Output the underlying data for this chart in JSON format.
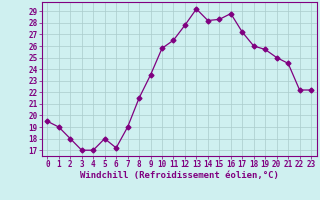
{
  "x": [
    0,
    1,
    2,
    3,
    4,
    5,
    6,
    7,
    8,
    9,
    10,
    11,
    12,
    13,
    14,
    15,
    16,
    17,
    18,
    19,
    20,
    21,
    22,
    23
  ],
  "y": [
    19.5,
    19.0,
    18.0,
    17.0,
    17.0,
    18.0,
    17.2,
    19.0,
    21.5,
    23.5,
    25.8,
    26.5,
    27.8,
    29.2,
    28.2,
    28.3,
    28.8,
    27.2,
    26.0,
    25.7,
    25.0,
    24.5,
    22.2,
    22.2
  ],
  "line_color": "#800080",
  "marker": "D",
  "marker_size": 2.5,
  "bg_color": "#cff0f0",
  "grid_color": "#aacccc",
  "xlabel": "Windchill (Refroidissement éolien,°C)",
  "xlabel_color": "#800080",
  "tick_color": "#800080",
  "ylim": [
    16.5,
    29.8
  ],
  "xlim": [
    -0.5,
    23.5
  ],
  "yticks": [
    17,
    18,
    19,
    20,
    21,
    22,
    23,
    24,
    25,
    26,
    27,
    28,
    29
  ],
  "xticks": [
    0,
    1,
    2,
    3,
    4,
    5,
    6,
    7,
    8,
    9,
    10,
    11,
    12,
    13,
    14,
    15,
    16,
    17,
    18,
    19,
    20,
    21,
    22,
    23
  ],
  "tick_fontsize": 5.5,
  "xlabel_fontsize": 6.5,
  "spine_color": "#800080",
  "linewidth": 0.9
}
